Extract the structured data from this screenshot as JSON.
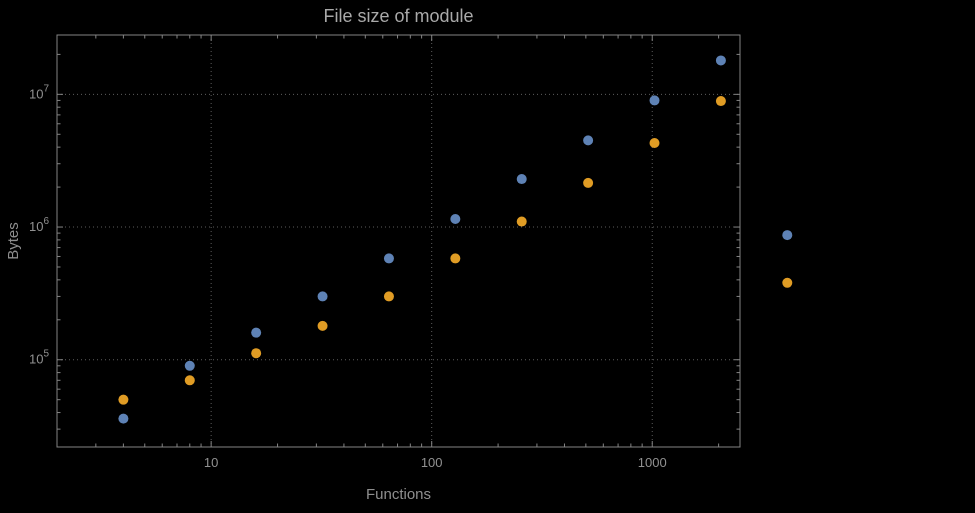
{
  "page": {
    "background": "#000000"
  },
  "chart_data": {
    "type": "scatter",
    "title": "File size of module",
    "xlabel": "Functions",
    "ylabel": "Bytes",
    "x_scale": "log",
    "y_scale": "log",
    "xlim": [
      2,
      2500
    ],
    "ylim": [
      22000,
      28000000
    ],
    "legend": "none",
    "grid": {
      "style": "dotted",
      "x_lines": [
        10,
        100,
        1000
      ],
      "y_lines": [
        100000,
        1000000,
        10000000
      ]
    },
    "x": [
      4,
      8,
      16,
      32,
      64,
      128,
      256,
      512,
      1024,
      2048,
      4096
    ],
    "series": [
      {
        "name": "blue-series",
        "color": "#5e82b5",
        "values": [
          36000,
          90000,
          160000,
          300000,
          580000,
          1150000,
          2300000,
          4500000,
          9000000,
          18000000,
          870000
        ]
      },
      {
        "name": "orange-series",
        "color": "#e09c24",
        "values": [
          50000,
          70000,
          112000,
          180000,
          300000,
          580000,
          1100000,
          2150000,
          4300000,
          8900000,
          380000
        ]
      }
    ],
    "x_ticks": [
      {
        "value": 10,
        "label": "10"
      },
      {
        "value": 100,
        "label": "100"
      },
      {
        "value": 1000,
        "label": "1000"
      }
    ],
    "y_ticks": [
      {
        "value": 100000,
        "mantissa": "10",
        "exponent": "5"
      },
      {
        "value": 1000000,
        "mantissa": "10",
        "exponent": "6"
      },
      {
        "value": 10000000,
        "mantissa": "10",
        "exponent": "7"
      }
    ],
    "marker": {
      "shape": "circle",
      "radius": 5
    },
    "colors": {
      "background": "#000000",
      "frame": "#858585",
      "grid": "#5d5d5d",
      "tick_text": "#919191",
      "title_text": "#a9a9a9",
      "axis_label_text": "#8f8f8f"
    }
  }
}
